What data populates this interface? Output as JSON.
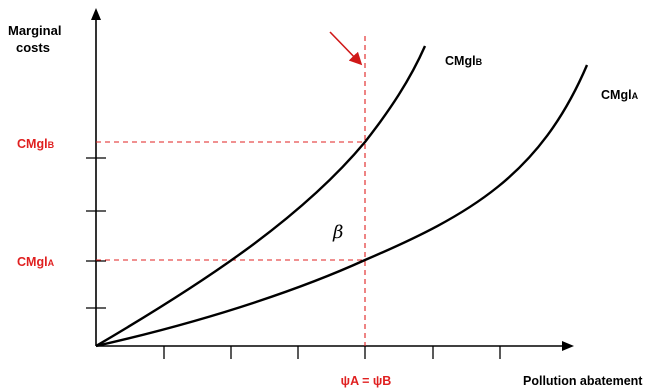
{
  "y_axis_label": [
    "Marginal",
    "costs"
  ],
  "x_axis_label": "Pollution abatement",
  "x_point_label": "ψA = ψB",
  "curves": {
    "b": {
      "label_main": "CMgl",
      "label_sub": "B"
    },
    "a": {
      "label_main": "CMgl",
      "label_sub": "A"
    }
  },
  "y_marks": {
    "b": {
      "label_main": "CMgl",
      "label_sub": "B"
    },
    "a": {
      "label_main": "CMgl",
      "label_sub": "A"
    }
  },
  "area_label": "β",
  "colors": {
    "axis": "#000000",
    "curve": "#000000",
    "reference": "#e02020",
    "highlight_text": "#e02020"
  }
}
